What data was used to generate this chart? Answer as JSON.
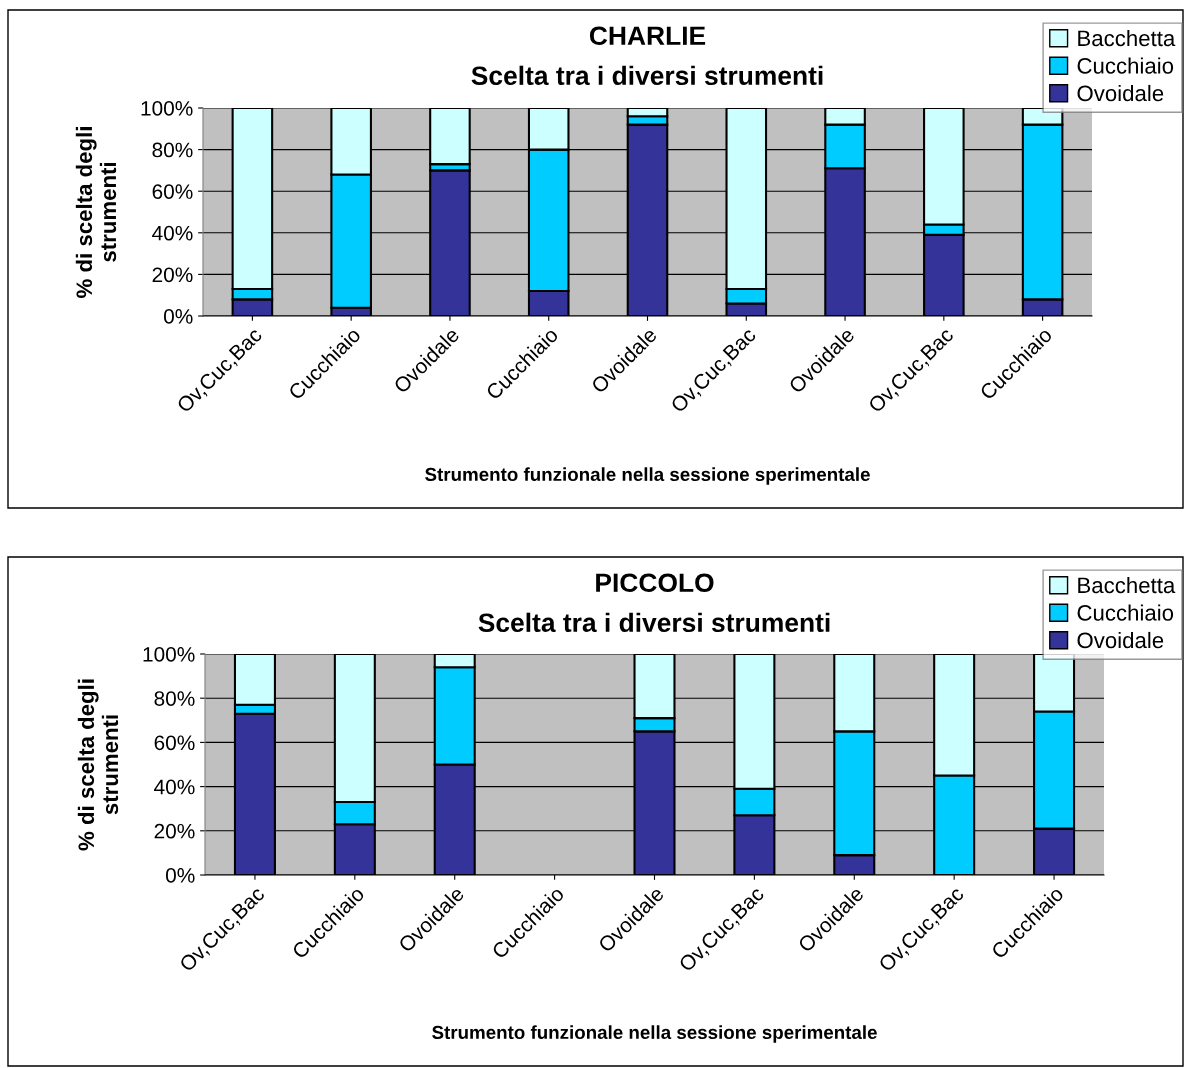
{
  "chart_data": [
    {
      "type": "bar",
      "stacked": true,
      "title": "CHARLIE",
      "subtitle": "Scelta tra i diversi strumenti",
      "xlabel": "Strumento funzionale nella sessione sperimentale",
      "ylabel": "% di scelta degli\nstrumenti",
      "categories": [
        "Ov,Cuc,Bac",
        "Cucchiaio",
        "Ovoidale",
        "Cucchiaio",
        "Ovoidale",
        "Ov,Cuc,Bac",
        "Ovoidale",
        "Ov,Cuc,Bac",
        "Cucchiaio"
      ],
      "series": [
        {
          "name": "Ovoidale",
          "color": "#333399",
          "values": [
            8,
            4,
            70,
            12,
            92,
            6,
            71,
            39,
            8
          ]
        },
        {
          "name": "Cucchiaio",
          "color": "#00ccff",
          "values": [
            5,
            64,
            3,
            68,
            4,
            7,
            21,
            5,
            84
          ]
        },
        {
          "name": "Bacchetta",
          "color": "#ccffff",
          "values": [
            87,
            32,
            27,
            20,
            4,
            87,
            8,
            56,
            8
          ]
        }
      ],
      "ylim": [
        0,
        100
      ],
      "yticks": [
        {
          "value": 0,
          "label": "0%"
        },
        {
          "value": 20,
          "label": "20%"
        },
        {
          "value": 40,
          "label": "40%"
        },
        {
          "value": 60,
          "label": "60%"
        },
        {
          "value": 80,
          "label": "80%"
        },
        {
          "value": 100,
          "label": "100%"
        }
      ],
      "grid": "y",
      "legend": "top right"
    },
    {
      "type": "bar",
      "stacked": true,
      "title": "PICCOLO",
      "subtitle": "Scelta tra i diversi strumenti",
      "xlabel": "Strumento funzionale nella sessione sperimentale",
      "ylabel": "% di scelta degli\nstrumenti",
      "categories": [
        "Ov,Cuc,Bac",
        "Cucchiaio",
        "Ovoidale",
        "Cucchiaio",
        "Ovoidale",
        "Ov,Cuc,Bac",
        "Ovoidale",
        "Ov,Cuc,Bac",
        "Cucchiaio"
      ],
      "series": [
        {
          "name": "Ovoidale",
          "color": "#333399",
          "values": [
            73,
            23,
            50,
            null,
            65,
            27,
            9,
            0,
            21
          ]
        },
        {
          "name": "Cucchiaio",
          "color": "#00ccff",
          "values": [
            4,
            10,
            44,
            null,
            6,
            12,
            56,
            45,
            53
          ]
        },
        {
          "name": "Bacchetta",
          "color": "#ccffff",
          "values": [
            23,
            67,
            6,
            null,
            29,
            61,
            35,
            55,
            26
          ]
        }
      ],
      "ylim": [
        0,
        100
      ],
      "yticks": [
        {
          "value": 0,
          "label": "0%"
        },
        {
          "value": 20,
          "label": "20%"
        },
        {
          "value": 40,
          "label": "40%"
        },
        {
          "value": 60,
          "label": "60%"
        },
        {
          "value": 80,
          "label": "80%"
        },
        {
          "value": 100,
          "label": "100%"
        }
      ],
      "grid": "y",
      "legend": "top right"
    }
  ]
}
